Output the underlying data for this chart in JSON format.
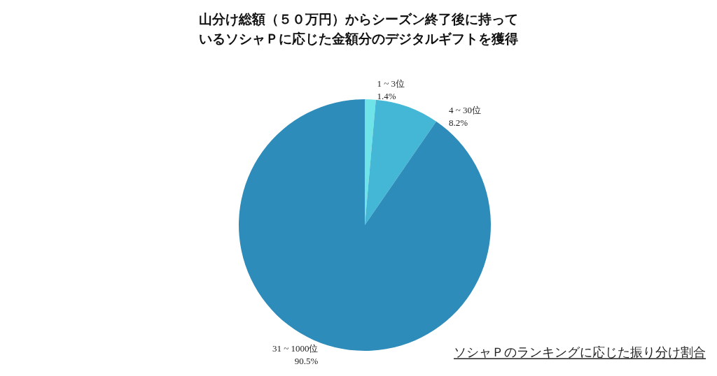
{
  "chart_data": {
    "type": "pie",
    "title": "山分け総額（５０万円）からシーズン終了後に持っているソシャＰに応じた金額分のデジタルギフトを獲得",
    "categories": [
      "1 ~ 3位",
      "4 ~ 30位",
      "31 ~ 1000位"
    ],
    "values": [
      1.4,
      8.2,
      90.5
    ],
    "value_labels": [
      "1.4%",
      "8.2%",
      "90.5%"
    ],
    "colors": [
      "#6ee3e8",
      "#44b7d6",
      "#2e8cba"
    ],
    "annotations": [
      "ソシャＰのランキングに応じた振り分け割合"
    ],
    "legend": false
  }
}
